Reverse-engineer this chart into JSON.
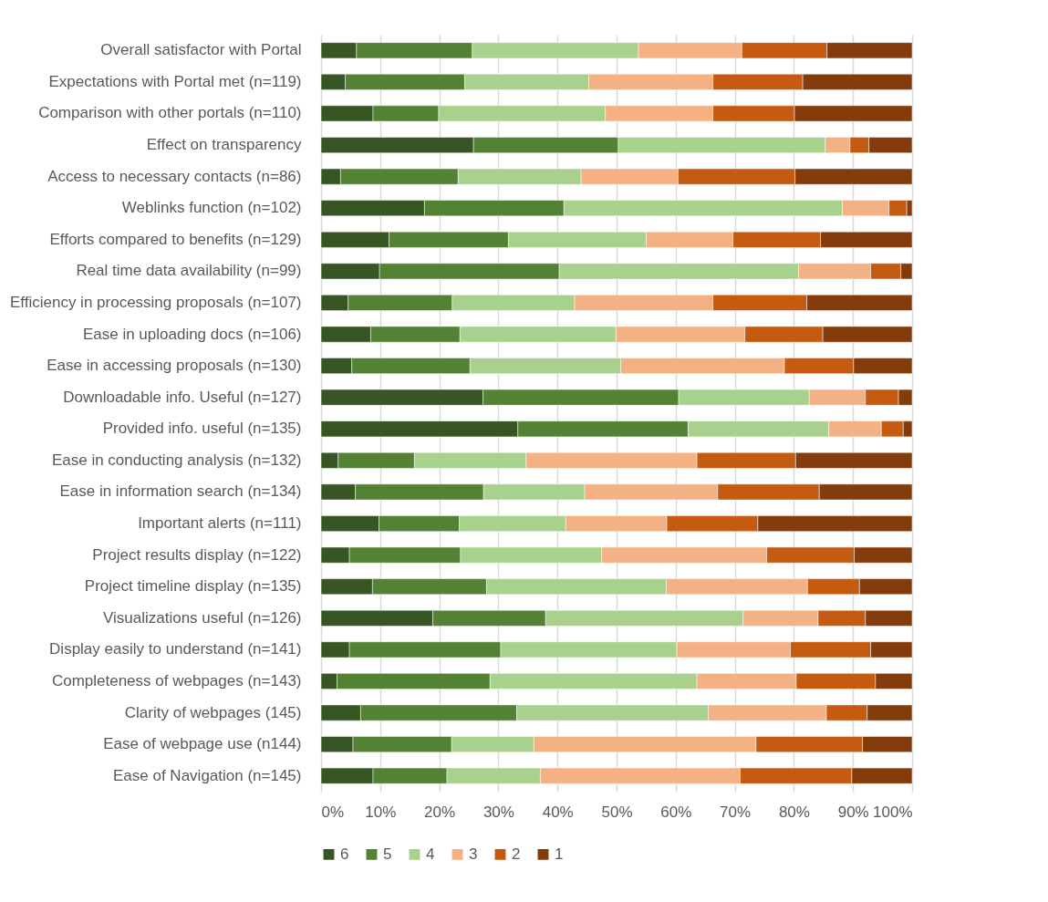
{
  "chart_data": {
    "type": "bar",
    "orientation": "horizontal",
    "stacked": true,
    "categories": [
      "Overall satisfactor with Portal",
      "Expectations with Portal met (n=119)",
      "Comparison with other portals (n=110)",
      "Effect on transparency",
      "Access to necessary contacts (n=86)",
      "Weblinks function (n=102)",
      "Efforts compared to benefits (n=129)",
      "Real time data availability (n=99)",
      "Efficiency in processing proposals (n=107)",
      "Ease in uploading docs (n=106)",
      "Ease in accessing proposals (n=130)",
      "Downloadable info. Useful (n=127)",
      "Provided info. useful (n=135)",
      "Ease in conducting analysis (n=132)",
      "Ease in information search (n=134)",
      "Important alerts (n=111)",
      "Project results display (n=122)",
      "Project timeline display (n=135)",
      "Visualizations useful (n=126)",
      "Display easily to understand (n=141)",
      "Completeness of webpages (n=143)",
      "Clarity of webpages (145)",
      "Ease of webpage use (n144)",
      "Ease of Navigation (n=145)"
    ],
    "series": [
      {
        "name": "6",
        "color": "#375623",
        "values": [
          6.0,
          4.1,
          8.8,
          25.8,
          3.3,
          17.5,
          11.5,
          9.9,
          4.6,
          8.4,
          5.2,
          27.4,
          33.3,
          2.9,
          5.8,
          9.8,
          4.8,
          8.7,
          18.9,
          4.8,
          2.7,
          6.7,
          5.4,
          8.8
        ]
      },
      {
        "name": "5",
        "color": "#548235",
        "values": [
          19.6,
          20.2,
          11.1,
          24.5,
          19.9,
          23.6,
          20.2,
          30.4,
          17.6,
          15.1,
          20.0,
          33.1,
          28.8,
          12.9,
          21.7,
          13.6,
          18.8,
          19.3,
          19.1,
          25.6,
          25.9,
          26.4,
          16.7,
          12.5
        ]
      },
      {
        "name": "4",
        "color": "#a9d18e",
        "values": [
          28.1,
          21.0,
          28.2,
          35.0,
          20.8,
          47.1,
          23.3,
          40.5,
          20.7,
          26.4,
          25.5,
          22.1,
          23.8,
          18.9,
          17.1,
          18.0,
          23.9,
          30.4,
          33.4,
          29.8,
          35.0,
          32.4,
          13.9,
          15.8
        ]
      },
      {
        "name": "3",
        "color": "#f4b183",
        "values": [
          17.5,
          21.0,
          18.2,
          4.2,
          16.4,
          7.9,
          14.7,
          12.2,
          23.4,
          21.8,
          27.7,
          9.5,
          8.9,
          28.9,
          22.5,
          17.1,
          27.9,
          23.9,
          12.7,
          19.2,
          16.8,
          20.0,
          37.6,
          33.8
        ]
      },
      {
        "name": "2",
        "color": "#c55a11",
        "values": [
          14.4,
          15.2,
          13.8,
          3.2,
          19.8,
          3.0,
          14.8,
          5.1,
          15.9,
          13.2,
          11.7,
          5.6,
          3.7,
          16.7,
          17.2,
          15.4,
          14.8,
          8.8,
          8.0,
          13.6,
          13.4,
          6.9,
          18.0,
          18.9
        ]
      },
      {
        "name": "1",
        "color": "#843c0c",
        "values": [
          14.4,
          18.5,
          19.9,
          7.3,
          19.8,
          0.9,
          15.5,
          1.9,
          17.8,
          15.1,
          9.9,
          2.3,
          1.5,
          19.7,
          15.7,
          26.1,
          9.8,
          8.9,
          7.9,
          7.0,
          6.2,
          7.6,
          8.4,
          10.2
        ]
      }
    ],
    "xlim": [
      0,
      100
    ],
    "xticks": [
      {
        "value": 0,
        "label": "0%"
      },
      {
        "value": 10,
        "label": "10%"
      },
      {
        "value": 20,
        "label": "20%"
      },
      {
        "value": 30,
        "label": "30%"
      },
      {
        "value": 40,
        "label": "40%"
      },
      {
        "value": 50,
        "label": "50%"
      },
      {
        "value": 60,
        "label": "60%"
      },
      {
        "value": 70,
        "label": "70%"
      },
      {
        "value": 80,
        "label": "80%"
      },
      {
        "value": 90,
        "label": "90%"
      },
      {
        "value": 100,
        "label": "100%"
      }
    ],
    "grid": "x",
    "legend": "bottom"
  }
}
